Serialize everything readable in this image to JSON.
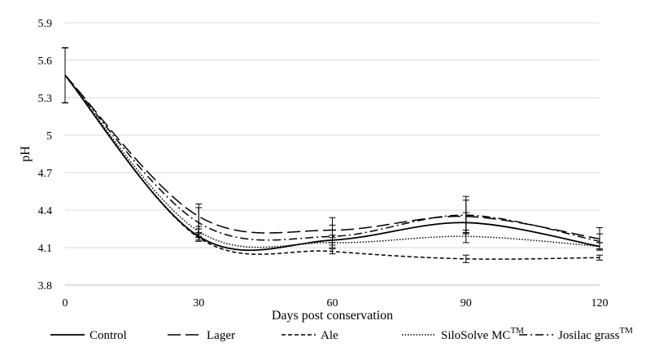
{
  "chart_data": {
    "type": "line",
    "xlabel": "Days post conservation",
    "ylabel": "pH",
    "x": [
      0,
      30,
      60,
      90,
      120
    ],
    "x_ticks": [
      "0",
      "30",
      "60",
      "90",
      "120"
    ],
    "y_ticks": [
      "3.8",
      "4.1",
      "4.4",
      "4.7",
      "5",
      "5.3",
      "5.6",
      "5.9"
    ],
    "y_tick_values": [
      3.8,
      4.1,
      4.4,
      4.7,
      5.0,
      5.3,
      5.6,
      5.9
    ],
    "xlim": [
      0,
      120
    ],
    "ylim": [
      3.8,
      5.9
    ],
    "grid": "horizontal",
    "legend_position": "bottom",
    "smoothed": true,
    "series": [
      {
        "name": "Control",
        "legend_base": "Control",
        "legend_sup": "",
        "line_style": "solid",
        "color": "#000000",
        "values": [
          5.48,
          4.19,
          4.16,
          4.3,
          4.11
        ],
        "error": [
          0.22,
          0.03,
          0.04,
          0.08,
          0.03
        ]
      },
      {
        "name": "Lager",
        "legend_base": "Lager",
        "legend_sup": "",
        "line_style": "long-dash",
        "color": "#000000",
        "values": [
          5.48,
          4.35,
          4.24,
          4.35,
          4.17
        ],
        "error": [
          0.22,
          0.1,
          0.1,
          0.13,
          0.09
        ]
      },
      {
        "name": "Ale",
        "legend_base": "Ale",
        "legend_sup": "",
        "line_style": "short-dash",
        "color": "#000000",
        "values": [
          5.48,
          4.18,
          4.07,
          4.01,
          4.02
        ],
        "error": [
          0.22,
          0.03,
          0.02,
          0.03,
          0.02
        ]
      },
      {
        "name": "SiloSolve MC™",
        "legend_base": "SiloSolve MC",
        "legend_sup": "TM",
        "line_style": "dotted",
        "color": "#000000",
        "values": [
          5.48,
          4.23,
          4.14,
          4.19,
          4.11
        ],
        "error": [
          0.22,
          0.04,
          0.04,
          0.05,
          0.03
        ]
      },
      {
        "name": "Josilac grass™",
        "legend_base": "Josilac grass",
        "legend_sup": "TM",
        "line_style": "dash-dot",
        "color": "#000000",
        "values": [
          5.48,
          4.3,
          4.19,
          4.36,
          4.15
        ],
        "error": [
          0.22,
          0.12,
          0.09,
          0.15,
          0.06
        ]
      }
    ]
  }
}
